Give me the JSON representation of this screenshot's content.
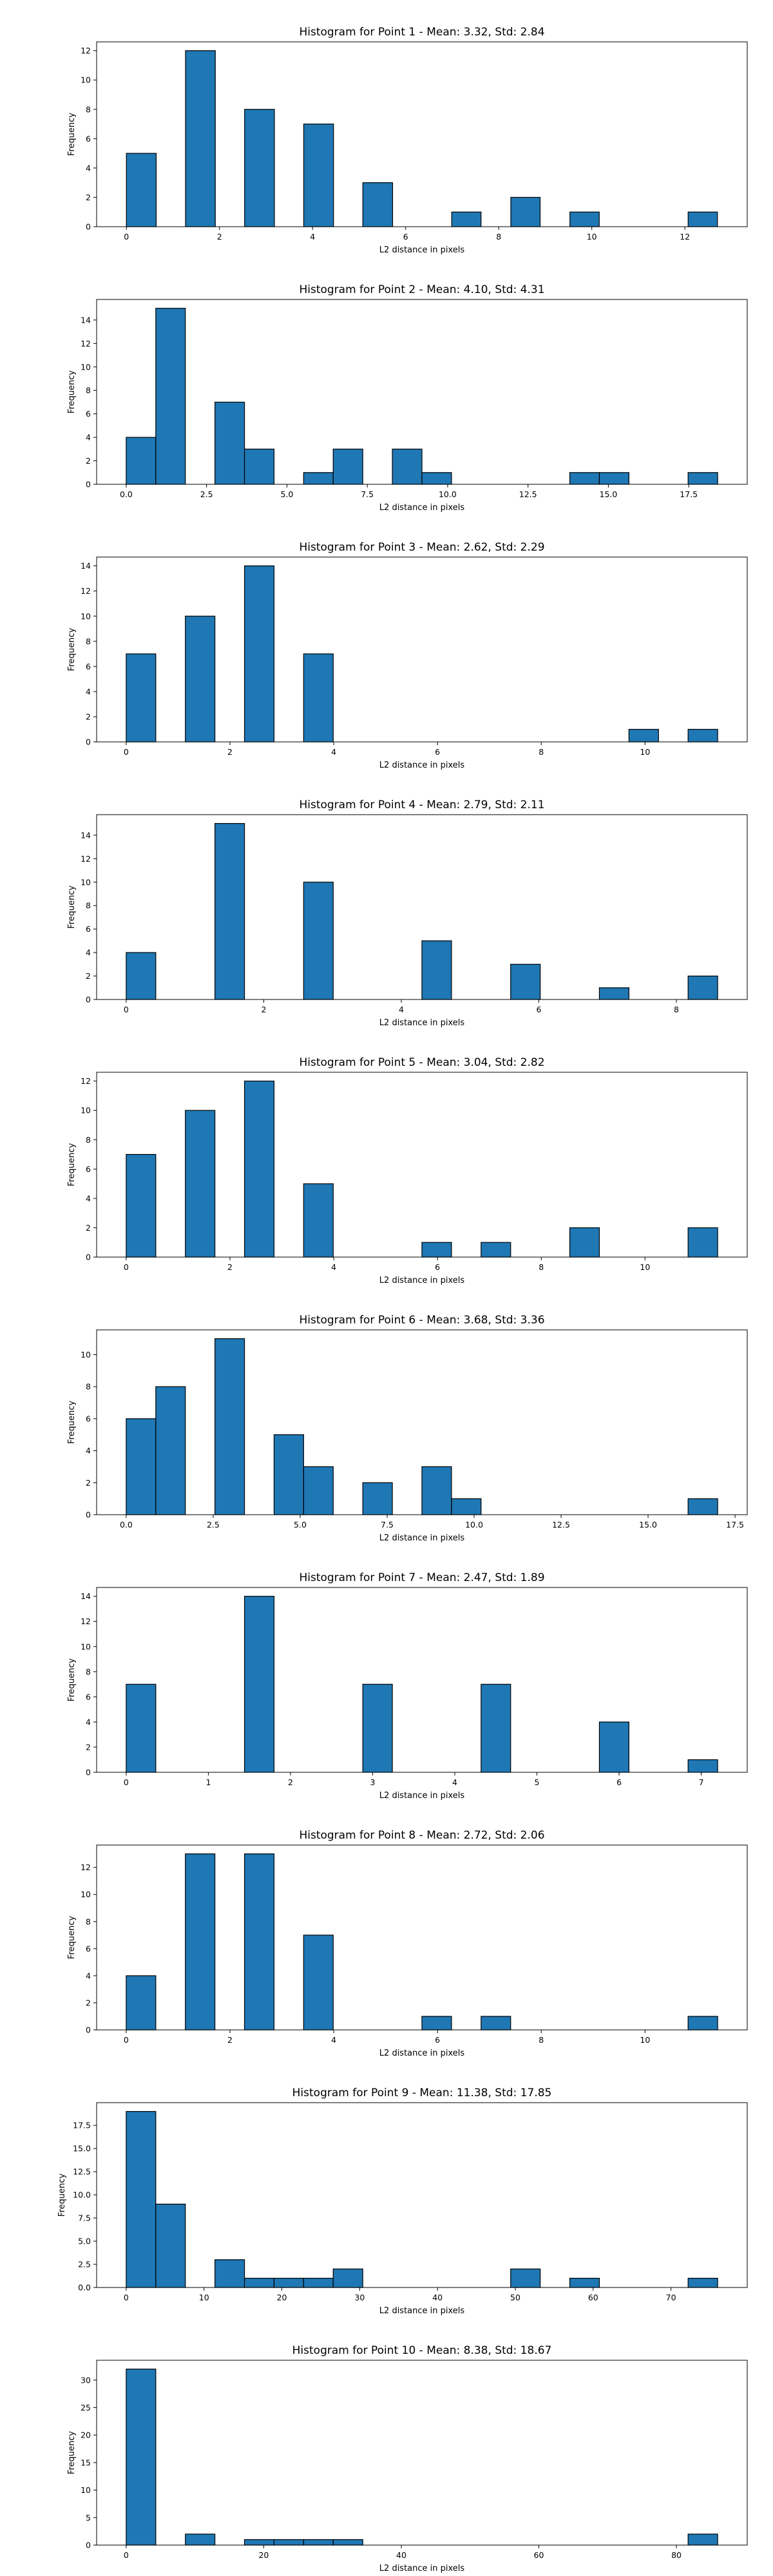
{
  "chart_data": [
    {
      "type": "bar",
      "title": "Histogram for Point 1 - Mean: 3.32, Std: 2.84",
      "xlabel": "L2 distance in pixels",
      "ylabel": "Frequency",
      "xlim": [
        -0.64,
        13.34
      ],
      "ylim": [
        0,
        12.6
      ],
      "xticks": [
        0,
        2,
        4,
        6,
        8,
        10,
        12
      ],
      "yticks": [
        0,
        2,
        4,
        6,
        8,
        10,
        12
      ],
      "bin_edges": [
        0.0,
        0.64,
        1.27,
        1.91,
        2.54,
        3.18,
        3.81,
        4.45,
        5.08,
        5.72,
        6.35,
        6.99,
        7.62,
        8.26,
        8.89,
        9.53,
        10.16,
        10.8,
        11.43,
        12.07,
        12.7
      ],
      "values": [
        5,
        0,
        12,
        0,
        8,
        0,
        7,
        0,
        3,
        0,
        0,
        1,
        0,
        2,
        0,
        1,
        0,
        0,
        0,
        1
      ],
      "color": "#1f77b4",
      "edgecolor": "#000000",
      "grid": false
    },
    {
      "type": "bar",
      "title": "Histogram for Point 2 - Mean: 4.10, Std: 4.31",
      "xlabel": "L2 distance in pixels",
      "ylabel": "Frequency",
      "xlim": [
        -0.92,
        19.32
      ],
      "ylim": [
        0,
        15.75
      ],
      "xticks": [
        0.0,
        2.5,
        5.0,
        7.5,
        10.0,
        12.5,
        15.0,
        17.5
      ],
      "xtick_labels": [
        "0.0",
        "2.5",
        "5.0",
        "7.5",
        "10.0",
        "12.5",
        "15.0",
        "17.5"
      ],
      "yticks": [
        0,
        2,
        4,
        6,
        8,
        10,
        12,
        14
      ],
      "bin_edges": [
        0.0,
        0.92,
        1.84,
        2.76,
        3.68,
        4.6,
        5.52,
        6.44,
        7.36,
        8.28,
        9.2,
        10.12,
        11.04,
        11.96,
        12.88,
        13.8,
        14.72,
        15.64,
        16.56,
        17.48,
        18.4
      ],
      "values": [
        4,
        15,
        0,
        7,
        3,
        0,
        1,
        3,
        0,
        3,
        1,
        0,
        0,
        0,
        0,
        1,
        1,
        0,
        0,
        1
      ],
      "color": "#1f77b4",
      "edgecolor": "#000000",
      "grid": false
    },
    {
      "type": "bar",
      "title": "Histogram for Point 3 - Mean: 2.62, Std: 2.29",
      "xlabel": "L2 distance in pixels",
      "ylabel": "Frequency",
      "xlim": [
        -0.57,
        11.97
      ],
      "ylim": [
        0,
        14.7
      ],
      "xticks": [
        0,
        2,
        4,
        6,
        8,
        10
      ],
      "yticks": [
        0,
        2,
        4,
        6,
        8,
        10,
        12,
        14
      ],
      "bin_edges": [
        0.0,
        0.57,
        1.14,
        1.71,
        2.28,
        2.85,
        3.42,
        3.99,
        4.56,
        5.13,
        5.7,
        6.27,
        6.84,
        7.41,
        7.98,
        8.55,
        9.12,
        9.69,
        10.26,
        10.83,
        11.4
      ],
      "values": [
        7,
        0,
        10,
        0,
        14,
        0,
        7,
        0,
        0,
        0,
        0,
        0,
        0,
        0,
        0,
        0,
        0,
        1,
        0,
        1
      ],
      "color": "#1f77b4",
      "edgecolor": "#000000",
      "grid": false
    },
    {
      "type": "bar",
      "title": "Histogram for Point 4 - Mean: 2.79, Std: 2.11",
      "xlabel": "L2 distance in pixels",
      "ylabel": "Frequency",
      "xlim": [
        -0.43,
        9.03
      ],
      "ylim": [
        0,
        15.75
      ],
      "xticks": [
        0,
        2,
        4,
        6,
        8
      ],
      "yticks": [
        0,
        2,
        4,
        6,
        8,
        10,
        12,
        14
      ],
      "bin_edges": [
        0.0,
        0.43,
        0.86,
        1.29,
        1.72,
        2.15,
        2.58,
        3.01,
        3.44,
        3.87,
        4.3,
        4.73,
        5.16,
        5.59,
        6.02,
        6.45,
        6.88,
        7.31,
        7.74,
        8.17,
        8.6
      ],
      "values": [
        4,
        0,
        0,
        15,
        0,
        0,
        10,
        0,
        0,
        0,
        5,
        0,
        0,
        3,
        0,
        0,
        1,
        0,
        0,
        2
      ],
      "color": "#1f77b4",
      "edgecolor": "#000000",
      "grid": false
    },
    {
      "type": "bar",
      "title": "Histogram for Point 5 - Mean: 3.04, Std: 2.82",
      "xlabel": "L2 distance in pixels",
      "ylabel": "Frequency",
      "xlim": [
        -0.57,
        11.97
      ],
      "ylim": [
        0,
        12.6
      ],
      "xticks": [
        0,
        2,
        4,
        6,
        8,
        10
      ],
      "yticks": [
        0,
        2,
        4,
        6,
        8,
        10,
        12
      ],
      "bin_edges": [
        0.0,
        0.57,
        1.14,
        1.71,
        2.28,
        2.85,
        3.42,
        3.99,
        4.56,
        5.13,
        5.7,
        6.27,
        6.84,
        7.41,
        7.98,
        8.55,
        9.12,
        9.69,
        10.26,
        10.83,
        11.4
      ],
      "values": [
        7,
        0,
        10,
        0,
        12,
        0,
        5,
        0,
        0,
        0,
        1,
        0,
        1,
        0,
        0,
        2,
        0,
        0,
        0,
        2
      ],
      "color": "#1f77b4",
      "edgecolor": "#000000",
      "grid": false
    },
    {
      "type": "bar",
      "title": "Histogram for Point 6 - Mean: 3.68, Std: 3.36",
      "xlabel": "L2 distance in pixels",
      "ylabel": "Frequency",
      "xlim": [
        -0.85,
        17.85
      ],
      "ylim": [
        0,
        11.55
      ],
      "xticks": [
        0.0,
        2.5,
        5.0,
        7.5,
        10.0,
        12.5,
        15.0,
        17.5
      ],
      "xtick_labels": [
        "0.0",
        "2.5",
        "5.0",
        "7.5",
        "10.0",
        "12.5",
        "15.0",
        "17.5"
      ],
      "yticks": [
        0,
        2,
        4,
        6,
        8,
        10
      ],
      "bin_edges": [
        0.0,
        0.85,
        1.7,
        2.55,
        3.4,
        4.25,
        5.1,
        5.95,
        6.8,
        7.65,
        8.5,
        9.35,
        10.2,
        11.05,
        11.9,
        12.75,
        13.6,
        14.45,
        15.3,
        16.15,
        17.0
      ],
      "values": [
        6,
        8,
        0,
        11,
        0,
        5,
        3,
        0,
        2,
        0,
        3,
        1,
        0,
        0,
        0,
        0,
        0,
        0,
        0,
        1
      ],
      "color": "#1f77b4",
      "edgecolor": "#000000",
      "grid": false
    },
    {
      "type": "bar",
      "title": "Histogram for Point 7 - Mean: 2.47, Std: 1.89",
      "xlabel": "L2 distance in pixels",
      "ylabel": "Frequency",
      "xlim": [
        -0.36,
        7.56
      ],
      "ylim": [
        0,
        14.7
      ],
      "xticks": [
        0,
        1,
        2,
        3,
        4,
        5,
        6,
        7
      ],
      "yticks": [
        0,
        2,
        4,
        6,
        8,
        10,
        12,
        14
      ],
      "bin_edges": [
        0.0,
        0.36,
        0.72,
        1.08,
        1.44,
        1.8,
        2.16,
        2.52,
        2.88,
        3.24,
        3.6,
        3.96,
        4.32,
        4.68,
        5.04,
        5.4,
        5.76,
        6.12,
        6.48,
        6.84,
        7.2
      ],
      "values": [
        7,
        0,
        0,
        0,
        14,
        0,
        0,
        0,
        7,
        0,
        0,
        0,
        7,
        0,
        0,
        0,
        4,
        0,
        0,
        1
      ],
      "color": "#1f77b4",
      "edgecolor": "#000000",
      "grid": false
    },
    {
      "type": "bar",
      "title": "Histogram for Point 8 - Mean: 2.72, Std: 2.06",
      "xlabel": "L2 distance in pixels",
      "ylabel": "Frequency",
      "xlim": [
        -0.57,
        11.97
      ],
      "ylim": [
        0,
        13.65
      ],
      "xticks": [
        0,
        2,
        4,
        6,
        8,
        10
      ],
      "yticks": [
        0,
        2,
        4,
        6,
        8,
        10,
        12
      ],
      "bin_edges": [
        0.0,
        0.57,
        1.14,
        1.71,
        2.28,
        2.85,
        3.42,
        3.99,
        4.56,
        5.13,
        5.7,
        6.27,
        6.84,
        7.41,
        7.98,
        8.55,
        9.12,
        9.69,
        10.26,
        10.83,
        11.4
      ],
      "values": [
        4,
        0,
        13,
        0,
        13,
        0,
        7,
        0,
        0,
        0,
        1,
        0,
        1,
        0,
        0,
        0,
        0,
        0,
        0,
        1
      ],
      "color": "#1f77b4",
      "edgecolor": "#000000",
      "grid": false
    },
    {
      "type": "bar",
      "title": "Histogram for Point 9 - Mean: 11.38, Std: 17.85",
      "xlabel": "L2 distance in pixels",
      "ylabel": "Frequency",
      "xlim": [
        -3.8,
        79.8
      ],
      "ylim": [
        0,
        19.95
      ],
      "xticks": [
        0,
        10,
        20,
        30,
        40,
        50,
        60,
        70
      ],
      "yticks": [
        0.0,
        2.5,
        5.0,
        7.5,
        10.0,
        12.5,
        15.0,
        17.5
      ],
      "ytick_labels": [
        "0.0",
        "2.5",
        "5.0",
        "7.5",
        "10.0",
        "12.5",
        "15.0",
        "17.5"
      ],
      "bin_edges": [
        0.0,
        3.8,
        7.6,
        11.4,
        15.2,
        19.0,
        22.8,
        26.6,
        30.4,
        34.2,
        38.0,
        41.8,
        45.6,
        49.4,
        53.2,
        57.0,
        60.8,
        64.6,
        68.4,
        72.2,
        76.0
      ],
      "values": [
        19,
        9,
        0,
        3,
        1,
        1,
        1,
        2,
        0,
        0,
        0,
        0,
        0,
        2,
        0,
        1,
        0,
        0,
        0,
        1
      ],
      "color": "#1f77b4",
      "edgecolor": "#000000",
      "grid": false
    },
    {
      "type": "bar",
      "title": "Histogram for Point 10 - Mean: 8.38, Std: 18.67",
      "xlabel": "L2 distance in pixels",
      "ylabel": "Frequency",
      "xlim": [
        -4.3,
        90.3
      ],
      "ylim": [
        0,
        33.6
      ],
      "xticks": [
        0,
        20,
        40,
        60,
        80
      ],
      "yticks": [
        0,
        5,
        10,
        15,
        20,
        25,
        30
      ],
      "bin_edges": [
        0.0,
        4.3,
        8.6,
        12.9,
        17.2,
        21.5,
        25.8,
        30.1,
        34.4,
        38.7,
        43.0,
        47.3,
        51.6,
        55.9,
        60.2,
        64.5,
        68.8,
        73.1,
        77.4,
        81.7,
        86.0
      ],
      "values": [
        32,
        0,
        2,
        0,
        1,
        1,
        1,
        1,
        0,
        0,
        0,
        0,
        0,
        0,
        0,
        0,
        0,
        0,
        0,
        2
      ],
      "color": "#1f77b4",
      "edgecolor": "#000000",
      "grid": false
    }
  ]
}
